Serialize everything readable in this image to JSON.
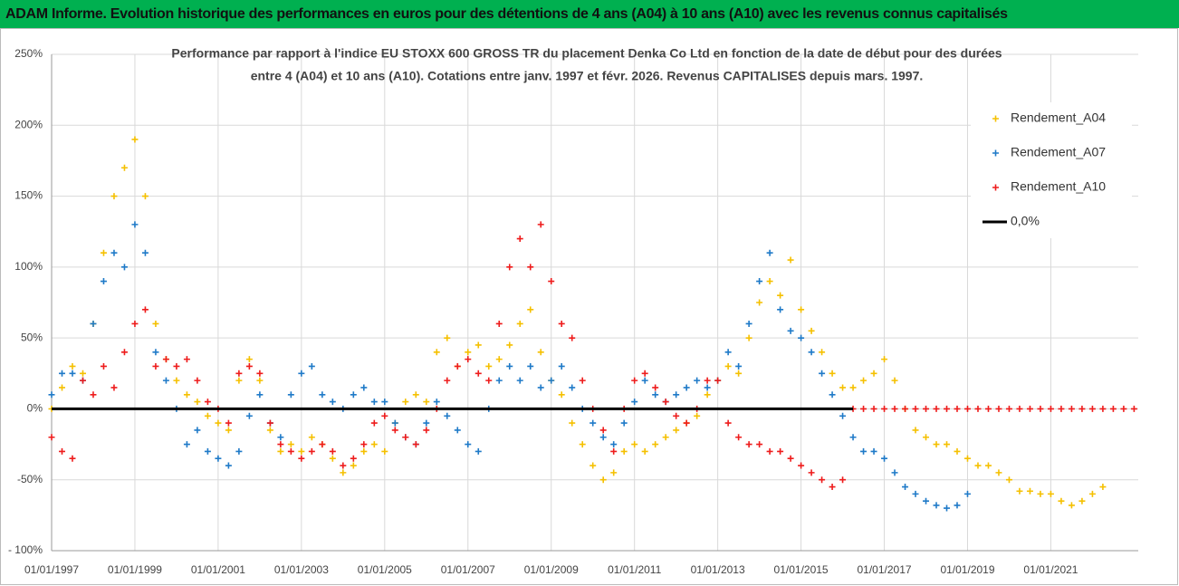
{
  "header": "ADAM Informe. Evolution historique des performances en euros pour des détentions de 4 ans (A04) à 10 ans (A10) avec les revenus connus capitalisés",
  "chart_data": {
    "type": "scatter",
    "title": [
      "Performance par rapport à l'indice EU STOXX 600 GROSS TR  du placement Denka Co Ltd en fonction de la date de début pour des durées",
      "entre 4 (A04) et 10 ans (A10). Cotations entre janv. 1997 et févr. 2026. Revenus CAPITALISES depuis mars. 1997."
    ],
    "x": [
      1997,
      1997.25,
      1997.5,
      1997.75,
      1998,
      1998.25,
      1998.5,
      1998.75,
      1999,
      1999.25,
      1999.5,
      1999.75,
      2000,
      2000.25,
      2000.5,
      2000.75,
      2001,
      2001.25,
      2001.5,
      2001.75,
      2002,
      2002.25,
      2002.5,
      2002.75,
      2003,
      2003.25,
      2003.5,
      2003.75,
      2004,
      2004.25,
      2004.5,
      2004.75,
      2005,
      2005.25,
      2005.5,
      2005.75,
      2006,
      2006.25,
      2006.5,
      2006.75,
      2007,
      2007.25,
      2007.5,
      2007.75,
      2008,
      2008.25,
      2008.5,
      2008.75,
      2009,
      2009.25,
      2009.5,
      2009.75,
      2010,
      2010.25,
      2010.5,
      2010.75,
      2011,
      2011.25,
      2011.5,
      2011.75,
      2012,
      2012.25,
      2012.5,
      2012.75,
      2013,
      2013.25,
      2013.5,
      2013.75,
      2014,
      2014.25,
      2014.5,
      2014.75,
      2015,
      2015.25,
      2015.5,
      2015.75,
      2016,
      2016.25,
      2016.5,
      2016.75,
      2017,
      2017.25,
      2017.5,
      2017.75,
      2018,
      2018.25,
      2018.5,
      2018.75,
      2019,
      2019.25,
      2019.5,
      2019.75,
      2020,
      2020.25,
      2020.5,
      2020.75,
      2021,
      2021.25,
      2021.5,
      2021.75,
      2022,
      2022.25,
      2022.5,
      2022.75,
      2023
    ],
    "series": [
      {
        "name": "Rendement_A04",
        "color": "#f5c000",
        "style": "markers",
        "values": [
          0,
          15,
          30,
          25,
          60,
          110,
          150,
          170,
          190,
          150,
          60,
          35,
          20,
          10,
          5,
          -5,
          -10,
          -15,
          20,
          35,
          20,
          -15,
          -30,
          -25,
          -30,
          -20,
          -25,
          -35,
          -45,
          -40,
          -30,
          -25,
          -30,
          -10,
          5,
          10,
          5,
          40,
          50,
          30,
          40,
          45,
          30,
          35,
          45,
          60,
          70,
          40,
          20,
          10,
          -10,
          -25,
          -40,
          -50,
          -45,
          -30,
          -25,
          -30,
          -25,
          -20,
          -15,
          -10,
          -5,
          10,
          20,
          30,
          25,
          50,
          75,
          90,
          80,
          105,
          70,
          55,
          40,
          25,
          15,
          15,
          20,
          25,
          35,
          20,
          0,
          -15,
          -20,
          -25,
          -25,
          -30,
          -35,
          -40,
          -40,
          -45,
          -50,
          -58,
          -58,
          -60,
          -60,
          -65,
          -68,
          -65,
          -60,
          -55,
          null,
          null,
          null
        ]
      },
      {
        "name": "Rendement_A07",
        "color": "#1f7ac8",
        "style": "markers",
        "values": [
          10,
          25,
          25,
          20,
          60,
          90,
          110,
          100,
          130,
          110,
          40,
          20,
          0,
          -25,
          -15,
          -30,
          -35,
          -40,
          -30,
          -5,
          10,
          -10,
          -20,
          10,
          25,
          30,
          10,
          5,
          0,
          10,
          15,
          5,
          5,
          -10,
          -20,
          -25,
          -10,
          5,
          -5,
          -15,
          -25,
          -30,
          0,
          20,
          30,
          20,
          30,
          15,
          20,
          30,
          15,
          0,
          -10,
          -20,
          -25,
          -10,
          5,
          20,
          10,
          5,
          10,
          15,
          20,
          15,
          20,
          40,
          30,
          60,
          90,
          110,
          70,
          55,
          50,
          40,
          25,
          10,
          -5,
          -20,
          -30,
          -30,
          -35,
          -45,
          -55,
          -60,
          -65,
          -68,
          -70,
          -68,
          -60,
          null,
          null,
          null,
          null,
          null,
          null,
          null,
          null,
          null,
          null,
          null,
          null,
          null,
          null,
          null,
          null
        ]
      },
      {
        "name": "Rendement_A10",
        "color": "#ee1c1c",
        "style": "markers",
        "values": [
          -20,
          -30,
          -35,
          20,
          10,
          30,
          15,
          40,
          60,
          70,
          30,
          35,
          30,
          35,
          20,
          5,
          0,
          -10,
          25,
          30,
          25,
          -10,
          -25,
          -30,
          -35,
          -30,
          -25,
          -30,
          -40,
          -35,
          -25,
          -10,
          -5,
          -15,
          -20,
          -25,
          -15,
          0,
          20,
          30,
          35,
          25,
          20,
          60,
          100,
          120,
          100,
          130,
          90,
          60,
          50,
          20,
          0,
          -15,
          -30,
          0,
          20,
          25,
          15,
          5,
          -5,
          -10,
          0,
          20,
          20,
          -10,
          -20,
          -25,
          -25,
          -30,
          -30,
          -35,
          -40,
          -45,
          -50,
          -55,
          -50,
          0,
          0,
          0,
          0,
          0,
          0,
          0,
          0,
          0,
          0,
          0,
          0,
          0,
          0,
          0,
          0,
          0,
          0,
          0,
          0,
          0,
          0,
          0,
          0,
          0,
          0,
          0,
          0
        ]
      },
      {
        "name": "0,0%",
        "color": "#000000",
        "style": "line",
        "values": [
          0,
          0,
          0,
          0,
          0,
          0,
          0,
          0,
          0,
          0,
          0,
          0,
          0,
          0,
          0,
          0,
          0,
          0,
          0,
          0,
          0,
          0,
          0,
          0,
          0,
          0,
          0,
          0,
          0,
          0,
          0,
          0,
          0,
          0,
          0,
          0,
          0,
          0,
          0,
          0,
          0,
          0,
          0,
          0,
          0,
          0,
          0,
          0,
          0,
          0,
          0,
          0,
          0,
          0,
          0,
          0,
          0,
          0,
          0,
          0,
          0,
          0,
          0,
          0,
          0,
          0,
          0,
          0,
          0,
          0,
          0,
          0,
          0,
          0,
          0,
          0,
          0,
          0,
          null,
          null,
          null,
          null,
          null,
          null,
          null,
          null,
          null,
          null,
          null,
          null,
          null,
          null,
          null,
          null,
          null,
          null,
          null,
          null,
          null,
          null,
          null,
          null,
          null,
          null,
          null
        ]
      }
    ],
    "xlim": [
      1997,
      2023.1
    ],
    "xticks": [
      {
        "value": 1997,
        "label": "01/01/1997"
      },
      {
        "value": 1999,
        "label": "01/01/1999"
      },
      {
        "value": 2001,
        "label": "01/01/2001"
      },
      {
        "value": 2003,
        "label": "01/01/2003"
      },
      {
        "value": 2005,
        "label": "01/01/2005"
      },
      {
        "value": 2007,
        "label": "01/01/2007"
      },
      {
        "value": 2009,
        "label": "01/01/2009"
      },
      {
        "value": 2011,
        "label": "01/01/2011"
      },
      {
        "value": 2013,
        "label": "01/01/2013"
      },
      {
        "value": 2015,
        "label": "01/01/2015"
      },
      {
        "value": 2017,
        "label": "01/01/2017"
      },
      {
        "value": 2019,
        "label": "01/01/2019"
      },
      {
        "value": 2021,
        "label": "01/01/2021"
      }
    ],
    "ylim": [
      -100,
      250
    ],
    "yticks": [
      {
        "value": -100,
        "label": "- 100%"
      },
      {
        "value": -50,
        "label": "-50%"
      },
      {
        "value": 0,
        "label": "0%"
      },
      {
        "value": 50,
        "label": "50%"
      },
      {
        "value": 100,
        "label": "100%"
      },
      {
        "value": 150,
        "label": "150%"
      },
      {
        "value": 200,
        "label": "200%"
      },
      {
        "value": 250,
        "label": "250%"
      }
    ],
    "grid": true,
    "legend": "top-right"
  }
}
